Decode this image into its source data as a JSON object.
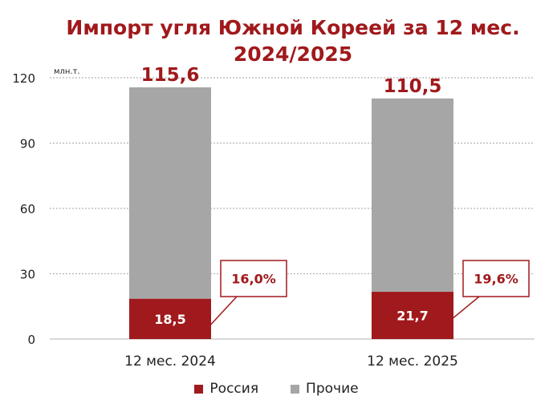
{
  "chart_data": {
    "type": "bar",
    "stacked": true,
    "title_lines": [
      "Импорт угля Южной Кореей за 12 мес.",
      "2024/2025"
    ],
    "unit_label": "млн.т.",
    "categories": [
      "12 мес. 2024",
      "12 мес. 2025"
    ],
    "ylim": [
      0,
      120
    ],
    "yticks": [
      0,
      30,
      60,
      90,
      120
    ],
    "grid": true,
    "legend_position": "bottom",
    "series": [
      {
        "name": "Россия",
        "values": [
          18.5,
          21.7
        ],
        "labels": [
          "18,5",
          "21,7"
        ],
        "color": "#a0191c"
      },
      {
        "name": "Прочие",
        "values": [
          97.1,
          88.8
        ],
        "color": "#a6a6a6"
      }
    ],
    "totals": {
      "values": [
        115.6,
        110.5
      ],
      "labels": [
        "115,6",
        "110,5"
      ]
    },
    "share_callouts": [
      "16,0%",
      "19,6%"
    ]
  }
}
